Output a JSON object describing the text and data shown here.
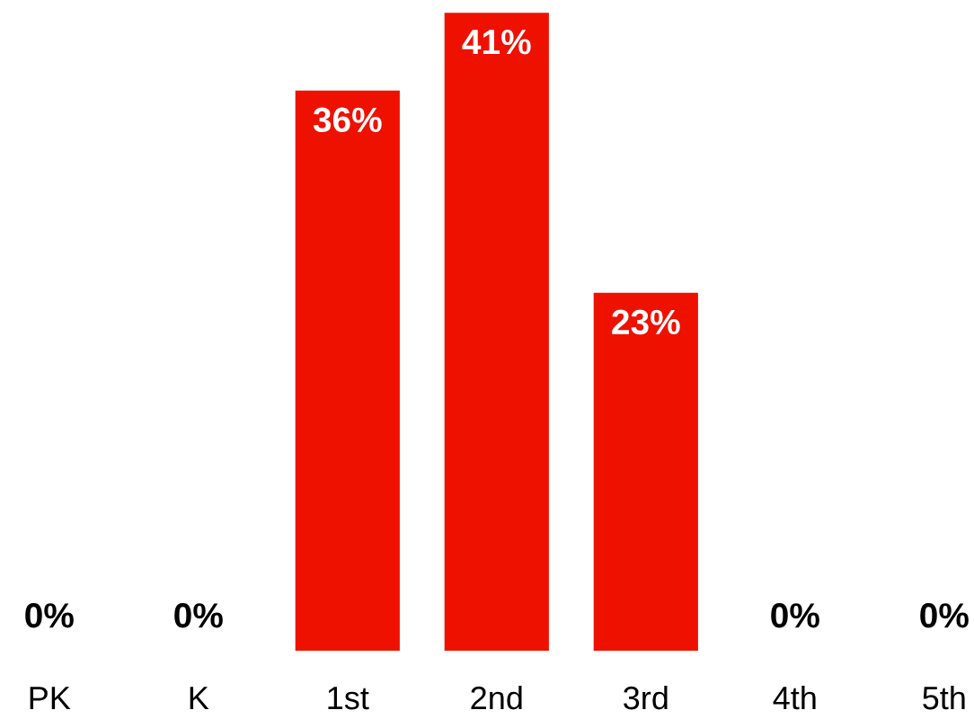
{
  "chart_data": {
    "type": "bar",
    "categories": [
      "PK",
      "K",
      "1st",
      "2nd",
      "3rd",
      "4th",
      "5th"
    ],
    "values": [
      0,
      0,
      36,
      41,
      23,
      0,
      0
    ],
    "value_labels": [
      "0%",
      "0%",
      "36%",
      "41%",
      "23%",
      "0%",
      "0%"
    ],
    "color": "#ee1100",
    "grid": false,
    "legend": false
  }
}
